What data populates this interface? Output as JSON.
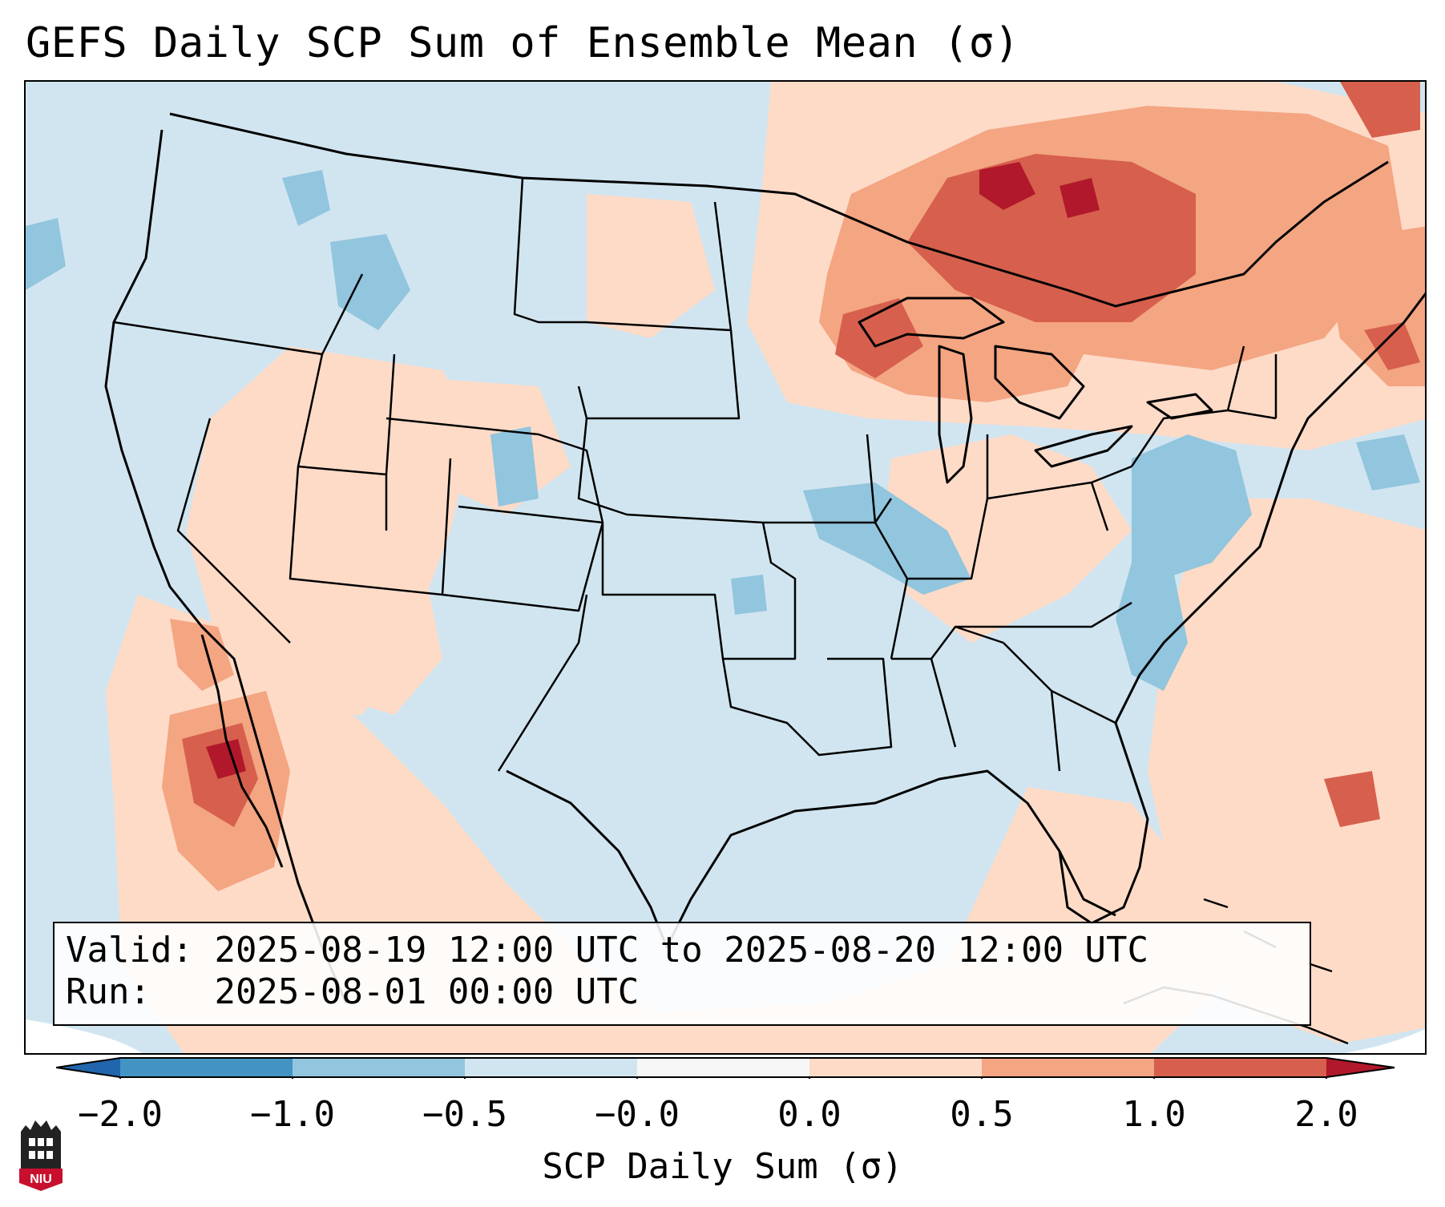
{
  "title": "GEFS Daily SCP Sum of Ensemble Mean (σ)",
  "info": {
    "valid_label": "Valid:",
    "valid_value": "2025-08-19 12:00 UTC to 2025-08-20 12:00 UTC",
    "run_label": "Run:",
    "run_value": "2025-08-01 00:00 UTC"
  },
  "colorbar": {
    "label": "SCP Daily Sum (σ)",
    "ticks": [
      "−2.0",
      "−1.0",
      "−0.5",
      "−0.0",
      "0.0",
      "0.5",
      "1.0",
      "2.0"
    ],
    "colors": {
      "below": "#2166ac",
      "n2_n1": "#4393c3",
      "n1_n05": "#92c5de",
      "n05_0": "#d1e5f0",
      "zero": "#f7f7f7",
      "p0_05": "#fddbc7",
      "p05_1": "#f4a582",
      "p1_2": "#d6604d",
      "above": "#b2182b"
    }
  },
  "logo": {
    "text": "NIU",
    "colors": {
      "shield": "#c8102e",
      "tower": "#222222"
    }
  },
  "map": {
    "colors": {
      "base": "#d1e5f0",
      "lines": "#000000"
    },
    "anomaly_regions": [
      {
        "name": "great-lakes-ontario",
        "level": "p1_2"
      },
      {
        "name": "upper-midwest",
        "level": "p05_1"
      },
      {
        "name": "northeast-canada",
        "level": "p05_1"
      },
      {
        "name": "nova-scotia",
        "level": "p05_1"
      },
      {
        "name": "baja-california",
        "level": "p1_2"
      },
      {
        "name": "southwest-mexico",
        "level": "p0_05"
      },
      {
        "name": "atlantic-west",
        "level": "p0_05"
      },
      {
        "name": "great-basin",
        "level": "p0_05"
      },
      {
        "name": "ohio-valley",
        "level": "p0_05"
      },
      {
        "name": "mid-atlantic-coast",
        "level": "n1_n05"
      },
      {
        "name": "missouri-illinois",
        "level": "n1_n05"
      },
      {
        "name": "northern-rockies",
        "level": "n1_n05"
      }
    ]
  }
}
